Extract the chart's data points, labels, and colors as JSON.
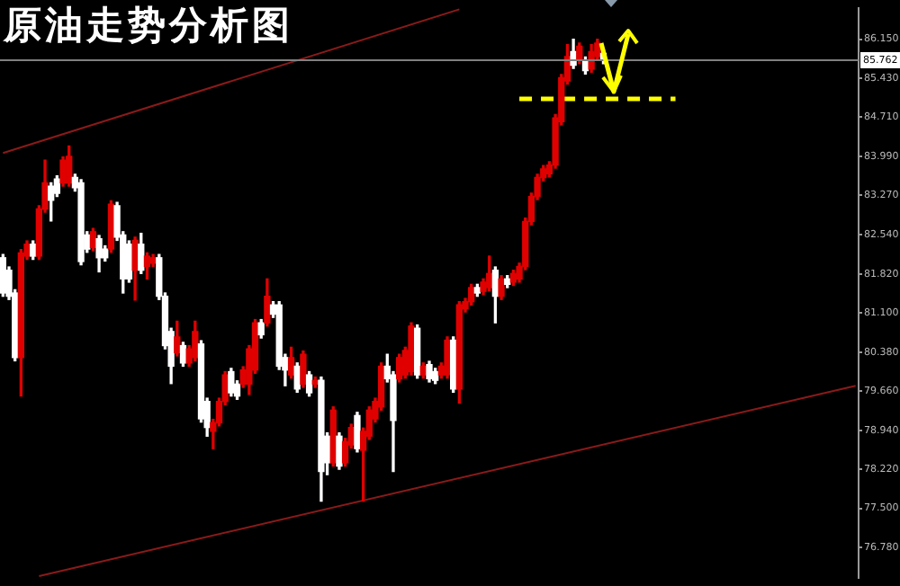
{
  "chart_data": {
    "type": "candlestick",
    "title": "原油走势分析图",
    "categories": [
      null,
      null,
      null,
      null,
      null,
      null,
      null,
      null,
      null,
      null,
      null,
      null,
      null,
      null,
      null,
      null,
      null,
      null,
      null,
      null,
      null,
      null,
      null,
      null,
      null,
      null,
      null,
      null,
      null,
      null,
      null,
      null,
      null,
      null,
      null,
      null,
      null,
      null,
      null,
      null,
      null,
      null,
      null,
      null,
      null,
      null,
      null,
      null,
      null,
      null,
      null,
      null,
      null,
      null,
      null,
      null,
      null,
      null,
      null,
      null,
      null,
      null,
      null,
      null,
      null,
      null,
      null,
      null,
      null,
      null,
      null,
      null,
      null,
      null,
      null,
      null,
      null,
      null,
      null,
      null,
      null,
      null,
      null,
      null,
      null,
      null,
      null,
      null,
      null,
      null,
      null,
      null,
      null,
      null,
      null,
      null,
      null,
      null,
      null,
      null,
      null,
      null,
      null,
      null,
      null,
      null,
      null,
      null,
      null,
      null,
      null,
      null,
      null,
      null,
      null,
      null,
      null,
      null,
      null,
      null,
      null,
      null,
      null,
      null,
      null,
      null,
      null,
      null,
      null,
      null,
      null,
      null,
      null,
      null,
      null,
      null,
      null,
      null,
      null,
      null,
      null,
      null,
      null
    ],
    "ohlc": [
      [
        82.12,
        82.18,
        81.41,
        81.47
      ],
      [
        81.89,
        81.95,
        81.35,
        81.41
      ],
      [
        81.47,
        81.53,
        80.22,
        80.28
      ],
      [
        80.28,
        82.27,
        79.57,
        82.21
      ],
      [
        82.15,
        82.43,
        82.09,
        82.37
      ],
      [
        82.37,
        82.43,
        82.09,
        82.15
      ],
      [
        82.15,
        83.08,
        82.09,
        83.02
      ],
      [
        83.02,
        83.92,
        82.96,
        83.5
      ],
      [
        83.44,
        83.5,
        82.8,
        83.18
      ],
      [
        83.57,
        83.63,
        83.25,
        83.31
      ],
      [
        83.5,
        83.98,
        83.44,
        83.92
      ],
      [
        83.5,
        84.18,
        83.44,
        83.99
      ],
      [
        83.6,
        83.66,
        83.35,
        83.41
      ],
      [
        83.5,
        83.56,
        81.99,
        82.05
      ],
      [
        82.54,
        82.6,
        82.22,
        82.28
      ],
      [
        82.31,
        82.66,
        82.25,
        82.6
      ],
      [
        82.47,
        82.53,
        81.86,
        82.12
      ],
      [
        82.28,
        82.34,
        82.06,
        82.12
      ],
      [
        82.28,
        83.17,
        82.22,
        83.11
      ],
      [
        83.08,
        83.14,
        82.44,
        82.5
      ],
      [
        82.54,
        82.6,
        81.47,
        81.73
      ],
      [
        82.37,
        82.43,
        81.67,
        81.73
      ],
      [
        81.89,
        82.5,
        81.34,
        82.44
      ],
      [
        82.37,
        82.57,
        81.83,
        81.89
      ],
      [
        81.96,
        82.21,
        81.73,
        82.15
      ],
      [
        82.02,
        82.18,
        81.96,
        82.12
      ],
      [
        82.12,
        82.18,
        81.35,
        81.41
      ],
      [
        81.41,
        81.47,
        80.44,
        80.5
      ],
      [
        80.76,
        80.82,
        79.8,
        80.12
      ],
      [
        80.37,
        80.95,
        80.31,
        80.66
      ],
      [
        80.5,
        80.56,
        80.12,
        80.18
      ],
      [
        80.18,
        80.5,
        80.12,
        80.44
      ],
      [
        80.28,
        80.95,
        80.22,
        80.76
      ],
      [
        80.53,
        80.59,
        79.09,
        79.15
      ],
      [
        79.47,
        79.53,
        78.83,
        78.99
      ],
      [
        78.92,
        79.14,
        78.6,
        79.08
      ],
      [
        79.08,
        79.53,
        79.02,
        79.47
      ],
      [
        79.47,
        80.02,
        79.41,
        79.96
      ],
      [
        80.02,
        80.08,
        79.57,
        79.63
      ],
      [
        79.79,
        79.85,
        79.51,
        79.57
      ],
      [
        79.79,
        80.11,
        79.73,
        80.05
      ],
      [
        79.79,
        80.5,
        79.6,
        80.44
      ],
      [
        80.05,
        80.98,
        79.99,
        80.92
      ],
      [
        80.92,
        80.98,
        80.64,
        80.7
      ],
      [
        80.92,
        81.73,
        80.86,
        81.41
      ],
      [
        81.25,
        81.31,
        81.02,
        81.08
      ],
      [
        81.25,
        81.31,
        80.06,
        80.12
      ],
      [
        80.28,
        80.34,
        79.76,
        80.05
      ],
      [
        79.96,
        80.47,
        79.9,
        80.28
      ],
      [
        80.12,
        80.18,
        79.64,
        79.7
      ],
      [
        79.79,
        80.4,
        79.73,
        80.34
      ],
      [
        79.96,
        80.02,
        79.57,
        79.63
      ],
      [
        79.79,
        79.92,
        79.73,
        79.86
      ],
      [
        79.86,
        79.92,
        77.63,
        78.18
      ],
      [
        78.83,
        78.89,
        78.12,
        78.34
      ],
      [
        78.34,
        79.37,
        78.28,
        79.31
      ],
      [
        78.83,
        78.89,
        78.22,
        78.28
      ],
      [
        78.34,
        78.79,
        78.28,
        78.73
      ],
      [
        78.67,
        79.05,
        78.61,
        78.99
      ],
      [
        79.21,
        79.27,
        78.54,
        78.6
      ],
      [
        78.57,
        78.98,
        77.63,
        78.92
      ],
      [
        78.83,
        79.37,
        78.77,
        79.31
      ],
      [
        79.15,
        79.53,
        79.09,
        79.47
      ],
      [
        79.37,
        80.18,
        79.31,
        80.12
      ],
      [
        80.12,
        80.34,
        79.83,
        79.89
      ],
      [
        79.96,
        80.02,
        78.18,
        79.12
      ],
      [
        79.89,
        80.34,
        79.83,
        80.28
      ],
      [
        79.96,
        80.47,
        79.9,
        80.41
      ],
      [
        80.02,
        80.92,
        79.96,
        80.86
      ],
      [
        80.82,
        80.88,
        79.9,
        79.96
      ],
      [
        79.96,
        80.18,
        79.9,
        80.12
      ],
      [
        80.15,
        80.21,
        79.83,
        79.89
      ],
      [
        80.02,
        80.08,
        79.8,
        79.86
      ],
      [
        79.96,
        80.18,
        79.9,
        80.12
      ],
      [
        79.96,
        80.66,
        79.9,
        80.6
      ],
      [
        80.6,
        80.66,
        79.64,
        79.7
      ],
      [
        79.7,
        81.31,
        79.44,
        81.25
      ],
      [
        81.18,
        81.37,
        81.12,
        81.31
      ],
      [
        81.31,
        81.63,
        81.25,
        81.57
      ],
      [
        81.57,
        81.63,
        81.41,
        81.47
      ],
      [
        81.5,
        81.73,
        81.44,
        81.67
      ],
      [
        81.57,
        82.15,
        81.51,
        81.83
      ],
      [
        81.89,
        81.95,
        80.92,
        81.41
      ],
      [
        81.41,
        81.79,
        81.35,
        81.73
      ],
      [
        81.73,
        81.79,
        81.57,
        81.63
      ],
      [
        81.67,
        81.89,
        81.61,
        81.83
      ],
      [
        81.73,
        82.02,
        81.67,
        81.96
      ],
      [
        81.96,
        82.85,
        81.9,
        82.79
      ],
      [
        82.79,
        83.31,
        82.73,
        83.25
      ],
      [
        83.25,
        83.66,
        83.19,
        83.6
      ],
      [
        83.6,
        83.82,
        83.54,
        83.76
      ],
      [
        83.67,
        83.89,
        83.61,
        83.83
      ],
      [
        83.83,
        84.76,
        83.77,
        84.7
      ],
      [
        84.63,
        85.5,
        84.57,
        85.44
      ],
      [
        85.38,
        86.05,
        85.32,
        85.83
      ],
      [
        85.92,
        86.15,
        85.61,
        85.67
      ],
      [
        85.76,
        86.08,
        85.7,
        86.02
      ],
      [
        85.76,
        85.82,
        85.51,
        85.57
      ],
      [
        85.6,
        86.05,
        85.54,
        85.92
      ],
      [
        85.83,
        86.15,
        85.77,
        86.08
      ],
      [
        85.89,
        85.95,
        85.7,
        85.76
      ],
      null,
      null,
      null,
      null,
      null,
      null,
      null,
      null,
      null,
      null,
      null,
      null,
      null,
      null,
      null,
      null,
      null,
      null,
      null,
      null,
      null,
      null,
      null,
      null,
      null,
      null,
      null,
      null,
      null,
      null,
      null,
      null,
      null,
      null,
      null,
      null,
      null,
      null,
      null,
      null,
      null,
      null
    ],
    "colors": [
      "#ffffff",
      "#ffffff",
      "#ffffff",
      "#e00000",
      "#e00000",
      "#ffffff",
      "#e00000",
      "#e00000",
      "#ffffff",
      "#ffffff",
      "#e00000",
      "#e00000",
      "#ffffff",
      "#ffffff",
      "#ffffff",
      "#e00000",
      "#ffffff",
      "#ffffff",
      "#e00000",
      "#ffffff",
      "#ffffff",
      "#ffffff",
      "#e00000",
      "#ffffff",
      "#e00000",
      "#e00000",
      "#ffffff",
      "#ffffff",
      "#ffffff",
      "#e00000",
      "#ffffff",
      "#e00000",
      "#e00000",
      "#ffffff",
      "#ffffff",
      "#e00000",
      "#e00000",
      "#e00000",
      "#ffffff",
      "#ffffff",
      "#e00000",
      "#e00000",
      "#e00000",
      "#ffffff",
      "#e00000",
      "#ffffff",
      "#ffffff",
      "#ffffff",
      "#e00000",
      "#ffffff",
      "#e00000",
      "#ffffff",
      "#e00000",
      "#ffffff",
      "#ffffff",
      "#e00000",
      "#ffffff",
      "#e00000",
      "#e00000",
      "#ffffff",
      "#e00000",
      "#e00000",
      "#e00000",
      "#e00000",
      "#ffffff",
      "#ffffff",
      "#e00000",
      "#e00000",
      "#e00000",
      "#ffffff",
      "#e00000",
      "#ffffff",
      "#ffffff",
      "#e00000",
      "#e00000",
      "#ffffff",
      "#e00000",
      "#e00000",
      "#e00000",
      "#ffffff",
      "#e00000",
      "#e00000",
      "#ffffff",
      "#e00000",
      "#ffffff",
      "#e00000",
      "#e00000",
      "#e00000",
      "#e00000",
      "#e00000",
      "#e00000",
      "#e00000",
      "#e00000",
      "#e00000",
      "#e00000",
      "#ffffff",
      "#e00000",
      "#ffffff",
      "#e00000",
      "#e00000",
      "#ffffff",
      null,
      null,
      null,
      null,
      null,
      null,
      null,
      null,
      null,
      null,
      null,
      null,
      null,
      null,
      null,
      null,
      null,
      null,
      null,
      null,
      null,
      null,
      null,
      null,
      null,
      null,
      null,
      null,
      null,
      null,
      null,
      null,
      null,
      null,
      null,
      null,
      null,
      null,
      null,
      null,
      null,
      null
    ],
    "series": [
      {
        "type": "line",
        "color": "#8b1a1a",
        "line_style": "solid",
        "values": [
          84.05,
          null,
          null,
          null,
          null,
          null,
          null,
          null,
          null,
          null,
          null,
          null,
          null,
          null,
          null,
          null,
          null,
          null,
          null,
          null,
          null,
          null,
          null,
          null,
          null,
          null,
          null,
          null,
          null,
          null,
          null,
          null,
          null,
          null,
          null,
          null,
          null,
          null,
          null,
          null,
          null,
          null,
          null,
          null,
          null,
          null,
          null,
          null,
          null,
          null,
          null,
          null,
          null,
          null,
          null,
          null,
          null,
          null,
          null,
          null,
          null,
          null,
          null,
          null,
          null,
          null,
          null,
          null,
          null,
          null,
          null,
          null,
          null,
          null,
          null,
          null,
          86.7,
          null,
          null,
          null,
          null,
          null,
          null,
          null,
          null,
          null,
          null,
          null,
          null,
          null,
          null,
          null,
          null,
          null,
          null,
          null,
          null,
          null,
          null,
          null,
          null,
          null,
          null,
          null,
          null,
          null,
          null,
          null,
          null,
          null,
          null,
          null,
          null,
          null,
          null,
          null,
          null,
          null,
          null,
          null,
          null,
          null,
          null,
          null,
          null,
          null,
          null,
          null,
          null,
          null,
          null,
          null,
          null,
          null,
          null,
          null,
          null,
          null,
          null,
          null,
          null,
          null,
          null
        ]
      },
      {
        "type": "line",
        "color": "#8b1a1a",
        "line_style": "solid",
        "values": [
          null,
          null,
          null,
          null,
          null,
          null,
          76.25,
          null,
          null,
          null,
          null,
          null,
          null,
          null,
          null,
          null,
          null,
          null,
          null,
          null,
          null,
          null,
          null,
          null,
          null,
          null,
          null,
          null,
          null,
          null,
          null,
          null,
          null,
          null,
          null,
          null,
          null,
          null,
          null,
          null,
          null,
          null,
          null,
          null,
          null,
          null,
          null,
          null,
          null,
          null,
          null,
          null,
          null,
          null,
          null,
          null,
          null,
          null,
          null,
          null,
          null,
          null,
          null,
          null,
          null,
          null,
          null,
          null,
          null,
          null,
          null,
          null,
          null,
          null,
          null,
          null,
          null,
          null,
          null,
          null,
          null,
          null,
          null,
          null,
          null,
          null,
          null,
          null,
          null,
          null,
          null,
          null,
          null,
          null,
          null,
          null,
          null,
          null,
          null,
          null,
          null,
          null,
          null,
          null,
          null,
          null,
          null,
          null,
          null,
          null,
          null,
          null,
          null,
          null,
          null,
          null,
          null,
          null,
          null,
          null,
          null,
          null,
          null,
          null,
          null,
          null,
          null,
          null,
          null,
          null,
          null,
          null,
          null,
          null,
          null,
          null,
          null,
          null,
          null,
          null,
          null,
          null,
          79.76
        ]
      },
      {
        "type": "line",
        "color": "#ffff00",
        "line_style": "dashed",
        "values": [
          null,
          null,
          null,
          null,
          null,
          null,
          null,
          null,
          null,
          null,
          null,
          null,
          null,
          null,
          null,
          null,
          null,
          null,
          null,
          null,
          null,
          null,
          null,
          null,
          null,
          null,
          null,
          null,
          null,
          null,
          null,
          null,
          null,
          null,
          null,
          null,
          null,
          null,
          null,
          null,
          null,
          null,
          null,
          null,
          null,
          null,
          null,
          null,
          null,
          null,
          null,
          null,
          null,
          null,
          null,
          null,
          null,
          null,
          null,
          null,
          null,
          null,
          null,
          null,
          null,
          null,
          null,
          null,
          null,
          null,
          null,
          null,
          null,
          null,
          null,
          null,
          null,
          null,
          null,
          null,
          null,
          null,
          null,
          null,
          null,
          null,
          85.05,
          null,
          null,
          null,
          null,
          null,
          null,
          null,
          null,
          null,
          null,
          null,
          null,
          null,
          null,
          null,
          null,
          null,
          null,
          null,
          null,
          null,
          null,
          null,
          null,
          null,
          85.05,
          null,
          null,
          null,
          null,
          null,
          null,
          null,
          null,
          null,
          null,
          null,
          null,
          null,
          null,
          null,
          null,
          null,
          null,
          null,
          null,
          null,
          null,
          null,
          null,
          null,
          null,
          null,
          null,
          null,
          null
        ]
      }
    ],
    "ref_lines": [
      {
        "axis": "y",
        "value": 85.762,
        "label": "85.762",
        "color": "#808080"
      }
    ],
    "ylim": [
      76.21,
      86.73
    ],
    "yticks": [
      {
        "value": 86.15,
        "label": "86.150"
      },
      {
        "value": 85.43,
        "label": "85.430"
      },
      {
        "value": 84.71,
        "label": "84.710"
      },
      {
        "value": 83.99,
        "label": "83.990"
      },
      {
        "value": 83.27,
        "label": "83.270"
      },
      {
        "value": 82.54,
        "label": "82.540"
      },
      {
        "value": 81.82,
        "label": "81.820"
      },
      {
        "value": 81.1,
        "label": "81.100"
      },
      {
        "value": 80.38,
        "label": "80.380"
      },
      {
        "value": 79.66,
        "label": "79.660"
      },
      {
        "value": 78.94,
        "label": "78.940"
      },
      {
        "value": 78.22,
        "label": "78.220"
      },
      {
        "value": 77.5,
        "label": "77.500"
      },
      {
        "value": 76.78,
        "label": "76.780"
      }
    ],
    "tick_labels": "y",
    "grid": false,
    "legend": false
  }
}
